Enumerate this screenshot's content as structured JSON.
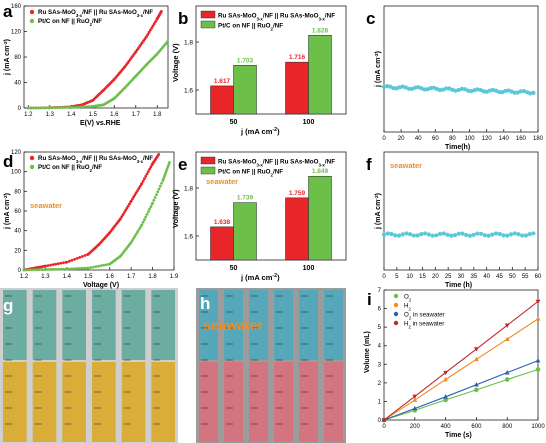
{
  "panels": {
    "a": {
      "letter": "a"
    },
    "b": {
      "letter": "b"
    },
    "c": {
      "letter": "c"
    },
    "d": {
      "letter": "d"
    },
    "e": {
      "letter": "e"
    },
    "f": {
      "letter": "f"
    },
    "g": {
      "letter": "g"
    },
    "h": {
      "letter": "h",
      "overlay": "seawater"
    },
    "i": {
      "letter": "i"
    }
  },
  "colors": {
    "red": "#e8262a",
    "green": "#6cc04a",
    "cyan": "#5bc8d8",
    "orange": "#f28a1e",
    "blue": "#2b5fb4",
    "dark_red": "#c0282a"
  },
  "chart_data": [
    {
      "id": "a",
      "type": "line",
      "xlabel": "E(V) vs.RHE",
      "ylabel": "j (mA cm⁻²)",
      "xlim": [
        1.18,
        1.85
      ],
      "ylim": [
        0,
        160
      ],
      "xticks": [
        1.2,
        1.3,
        1.4,
        1.5,
        1.6,
        1.7,
        1.8
      ],
      "yticks": [
        0,
        40,
        80,
        120,
        160
      ],
      "legend": "top-left",
      "series": [
        {
          "name": "Ru SAs-MoO3-x/NF || Ru SAs-MoO3-x/NF",
          "color": "#e8262a",
          "x": [
            1.2,
            1.3,
            1.4,
            1.45,
            1.5,
            1.55,
            1.6,
            1.65,
            1.7,
            1.75,
            1.8,
            1.82
          ],
          "y": [
            0,
            0.5,
            2,
            5,
            12,
            28,
            45,
            65,
            88,
            112,
            140,
            152
          ]
        },
        {
          "name": "Pt/C on NF || RuO2/NF",
          "color": "#6cc04a",
          "x": [
            1.2,
            1.3,
            1.4,
            1.5,
            1.55,
            1.6,
            1.65,
            1.7,
            1.75,
            1.8,
            1.85
          ],
          "y": [
            0,
            0.3,
            1,
            2.5,
            5,
            15,
            32,
            50,
            68,
            85,
            105
          ]
        }
      ]
    },
    {
      "id": "b",
      "type": "bar",
      "xlabel": "j (mA cm⁻²)",
      "ylabel": "Voltage (V)",
      "categories": [
        "50",
        "100"
      ],
      "ylim": [
        1.5,
        1.95
      ],
      "yticks": [
        1.6,
        1.8
      ],
      "legend": "top",
      "series": [
        {
          "name": "Ru SAs-MoO3-x/NF || Ru SAs-MoO3-x/NF",
          "color": "#e8262a",
          "values": [
            1.617,
            1.716
          ],
          "labels": [
            "1.617",
            "1.716"
          ]
        },
        {
          "name": "Pt/C on NF || RuO2/NF",
          "color": "#6cc04a",
          "values": [
            1.703,
            1.828
          ],
          "labels": [
            "1.703",
            "1.828"
          ]
        }
      ]
    },
    {
      "id": "c",
      "type": "scatter",
      "xlabel": "Time(h)",
      "ylabel": "j (mA cm⁻²)",
      "xlim": [
        0,
        180
      ],
      "ylim": [
        0,
        140
      ],
      "xticks": [
        0,
        20,
        40,
        60,
        80,
        100,
        120,
        140,
        160,
        180
      ],
      "series": [
        {
          "name": "",
          "color": "#5bc8d8",
          "level": 50,
          "end_level": 44
        }
      ]
    },
    {
      "id": "d",
      "type": "line",
      "xlabel": "Voltage (V)",
      "ylabel": "j (mA cm⁻²)",
      "annotation": "seawater",
      "xlim": [
        1.2,
        1.9
      ],
      "ylim": [
        0,
        120
      ],
      "xticks": [
        1.2,
        1.3,
        1.4,
        1.5,
        1.6,
        1.7,
        1.8,
        1.9
      ],
      "yticks": [
        0,
        20,
        40,
        60,
        80,
        100,
        120
      ],
      "legend": "top-left",
      "series": [
        {
          "name": "Ru SAs-MoO3-x/NF || Ru SAs-MoO3-x/NF",
          "color": "#e8262a",
          "x": [
            1.2,
            1.25,
            1.3,
            1.4,
            1.5,
            1.55,
            1.6,
            1.65,
            1.7,
            1.75,
            1.8,
            1.83
          ],
          "y": [
            0,
            2,
            4,
            8,
            16,
            26,
            38,
            52,
            70,
            88,
            108,
            118
          ]
        },
        {
          "name": "Pt/C on NF || RuO2/NF",
          "color": "#6cc04a",
          "x": [
            1.2,
            1.3,
            1.4,
            1.5,
            1.6,
            1.65,
            1.7,
            1.75,
            1.8,
            1.85,
            1.88
          ],
          "y": [
            0,
            0.5,
            1,
            2,
            6,
            14,
            28,
            46,
            68,
            92,
            110
          ]
        }
      ]
    },
    {
      "id": "e",
      "type": "bar",
      "xlabel": "j (mA cm⁻²)",
      "ylabel": "Voltage (V)",
      "annotation": "seawater",
      "categories": [
        "50",
        "100"
      ],
      "ylim": [
        1.5,
        1.95
      ],
      "yticks": [
        1.6,
        1.8
      ],
      "legend": "top",
      "series": [
        {
          "name": "Ru SAs-MoO3-x/NF || Ru SAs-MoO3-x/NF",
          "color": "#e8262a",
          "values": [
            1.638,
            1.759
          ],
          "labels": [
            "1.638",
            "1.759"
          ]
        },
        {
          "name": "Pt/C on NF || RuO2/NF",
          "color": "#6cc04a",
          "values": [
            1.739,
            1.849
          ],
          "labels": [
            "1.739",
            "1.849"
          ]
        }
      ]
    },
    {
      "id": "f",
      "type": "scatter",
      "xlabel": "Time (h)",
      "ylabel": "j (mA cm⁻²)",
      "annotation": "seawater",
      "xlim": [
        0,
        60
      ],
      "ylim": [
        0,
        120
      ],
      "xticks": [
        0,
        5,
        10,
        15,
        20,
        25,
        30,
        35,
        40,
        45,
        50,
        55,
        60
      ],
      "series": [
        {
          "name": "",
          "color": "#5bc8d8",
          "level": 36,
          "end_level": 36
        }
      ]
    },
    {
      "id": "i",
      "type": "line",
      "xlabel": "Time (s)",
      "ylabel": "Volume (mL)",
      "xlim": [
        0,
        1000
      ],
      "ylim": [
        0,
        7
      ],
      "xticks": [
        0,
        200,
        400,
        600,
        800,
        1000
      ],
      "yticks": [
        0,
        1,
        2,
        3,
        4,
        5,
        6,
        7
      ],
      "legend": "top-left",
      "series": [
        {
          "name": "O2",
          "color": "#6cc04a",
          "marker": "circle",
          "x": [
            0,
            200,
            400,
            600,
            800,
            1000
          ],
          "y": [
            0,
            0.52,
            1.08,
            1.62,
            2.18,
            2.72
          ]
        },
        {
          "name": "H2",
          "color": "#f28a1e",
          "marker": "triangle-up",
          "x": [
            0,
            200,
            400,
            600,
            800,
            1000
          ],
          "y": [
            0,
            1.07,
            2.18,
            3.27,
            4.35,
            5.45
          ]
        },
        {
          "name": "O2 in seawater",
          "color": "#2b5fb4",
          "marker": "triangle-up",
          "x": [
            0,
            200,
            400,
            600,
            800,
            1000
          ],
          "y": [
            0,
            0.62,
            1.25,
            1.9,
            2.55,
            3.2
          ]
        },
        {
          "name": "H2 in seawater",
          "color": "#c0282a",
          "marker": "triangle-down",
          "x": [
            0,
            200,
            400,
            600,
            800,
            1000
          ],
          "y": [
            0,
            1.27,
            2.55,
            3.82,
            5.1,
            6.38
          ]
        }
      ]
    }
  ]
}
